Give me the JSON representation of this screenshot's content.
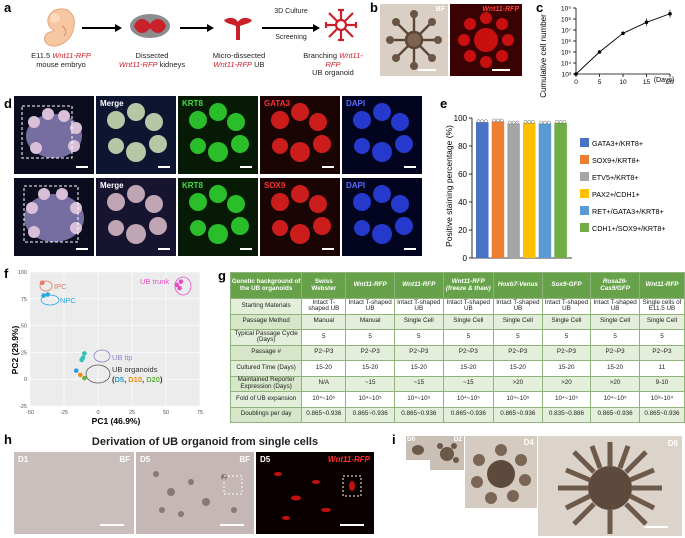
{
  "panel_letters": {
    "a": "a",
    "b": "b",
    "c": "c",
    "d": "d",
    "e": "e",
    "f": "f",
    "g": "g",
    "h": "h",
    "i": "i"
  },
  "panel_a": {
    "step1_line1": "E11.5",
    "step1_gene": "Wnt11-RFP",
    "step1_line2": "mouse embryo",
    "step2_line1": "Dissected",
    "step2_gene": "Wnt11-RFP",
    "step2_line2": "kidneys",
    "step3_line1": "Micro-dissected",
    "step3_gene": "Wnt11-RFP",
    "step3_line2": "UB",
    "arrow_label1": "3D Culture",
    "arrow_label2": "Screening",
    "step4_line1": "Branching",
    "step4_gene": "Wnt11-RFP",
    "step4_line2": "UB organoid"
  },
  "panel_b": {
    "bf_label": "BF",
    "rfp_label": "Wnt11-RFP"
  },
  "panel_c": {
    "chart_data": {
      "type": "line",
      "x": [
        0,
        5,
        10,
        15,
        20
      ],
      "y": [
        1000,
        100000,
        5000000,
        50000000,
        300000000
      ],
      "xlabel": "(Days)",
      "ylabel": "Cumulative cell number",
      "yscale": "log",
      "ylim": [
        1000,
        1000000000
      ],
      "xticks": [
        "0",
        "5",
        "10",
        "15",
        "20"
      ],
      "yticks": [
        "10³",
        "10⁴",
        "10⁵",
        "10⁶",
        "10⁷",
        "10⁸",
        "10⁹"
      ]
    }
  },
  "panel_d": {
    "row1": [
      "Merge",
      "KRT8",
      "GATA3",
      "DAPI"
    ],
    "row2": [
      "Merge",
      "KRT8",
      "SOX9",
      "DAPI"
    ]
  },
  "panel_e": {
    "chart_data": {
      "type": "bar",
      "categories": [
        "GATA3+/KRT8+",
        "SOX9+/KRT8+",
        "ETV5+/KRT8+",
        "PAX2+/CDH1+",
        "RET+/GATA3+/KRT8+",
        "CDH1+/SOX9+/KRT8+"
      ],
      "values": [
        97,
        97.5,
        96,
        96.5,
        96,
        96.5
      ],
      "ylabel": "Positive staining percentage (%)",
      "ylim": [
        0,
        100
      ],
      "yticks": [
        "0",
        "20",
        "40",
        "60",
        "80",
        "100"
      ],
      "colors": [
        "#4a73c4",
        "#ed7d31",
        "#a5a5a5",
        "#ffc000",
        "#5b9bd5",
        "#70ad47"
      ]
    }
  },
  "panel_f": {
    "chart_data": {
      "type": "scatter",
      "xlabel": "PC1 (46.9%)",
      "ylabel": "PC2 (29.9%)",
      "xlim": [
        -50,
        75
      ],
      "ylim": [
        -25,
        100
      ],
      "xticks": [
        "-50",
        "-25",
        "0",
        "25",
        "50",
        "75"
      ],
      "yticks": [
        "-25",
        "0",
        "25",
        "50",
        "75",
        "100"
      ],
      "groups": [
        {
          "name": "IPC",
          "color": "#e8775a",
          "points": [
            [
              -41,
              90
            ]
          ]
        },
        {
          "name": "NPC",
          "color": "#2aa8e0",
          "points": [
            [
              -40,
              78
            ],
            [
              -37,
              79
            ]
          ]
        },
        {
          "name": "UB trunk",
          "color": "#e84fc4",
          "points": [
            [
              58,
              88
            ],
            [
              61,
              91
            ],
            [
              60,
              85
            ]
          ]
        },
        {
          "name": "UB tip",
          "color": "#2ec3b5",
          "points": [
            [
              -11,
              20
            ],
            [
              -10,
              24
            ],
            [
              -12,
              18
            ]
          ]
        },
        {
          "name": "D5",
          "color": "#2b9ad6",
          "points": [
            [
              -16,
              8
            ]
          ]
        },
        {
          "name": "D10",
          "color": "#f08a1c",
          "points": [
            [
              -13,
              4
            ]
          ]
        },
        {
          "name": "D20",
          "color": "#62b53b",
          "points": [
            [
              -10,
              1
            ]
          ]
        }
      ],
      "labels": {
        "ipc": "IPC",
        "npc": "NPC",
        "ub_trunk": "UB trunk",
        "ub_tip": "UB tip",
        "ub_organoids": "UB organoids",
        "d5": "D5",
        "d10": "D10",
        "d20": "D20"
      }
    }
  },
  "panel_g": {
    "header": [
      "Genetic background of the UB organoids",
      "Swiss Webster",
      "Wnt11-RFP",
      "Wnt11-RFP",
      "Wnt11-RFP (freeze & thaw)",
      "Hoxb7-Venus",
      "Sox9-GFP",
      "Rosa26-Cas9/GFP",
      "Wnt11-RFP"
    ],
    "rows": [
      [
        "Starting Materials",
        "Intact T-shaped UB",
        "Intact T-shaped UB",
        "Intact T-shaped UB",
        "Intact T-shaped UB",
        "Intact T-shaped UB",
        "Intact T-shaped UB",
        "Intact T-shaped UB",
        "Single cells of E11.5 UB"
      ],
      [
        "Passage Method",
        "Manual",
        "Manual",
        "Single Cell",
        "Single Cell",
        "Single Cell",
        "Single Cell",
        "Single Cell",
        "Single Cell"
      ],
      [
        "Typical Passage Cycle (Days)",
        "5",
        "5",
        "5",
        "5",
        "5",
        "5",
        "5",
        "5"
      ],
      [
        "Passage #",
        "P2~P3",
        "P2~P3",
        "P2~P3",
        "P2~P3",
        "P2~P3",
        "P2~P3",
        "P2~P3",
        "P2~P3"
      ],
      [
        "Cultured Time (Days)",
        "15-20",
        "15-20",
        "15-20",
        "15-20",
        "15-20",
        "15-20",
        "15-20",
        "11"
      ],
      [
        "Maintained Reporter Expression (Days)",
        "N/A",
        "~15",
        "~15",
        "~15",
        ">20",
        ">20",
        ">20",
        "9-10"
      ],
      [
        "Fold of UB expansion",
        "10⁴~10⁵",
        "10⁴~10⁵",
        "10⁴~10⁵",
        "10⁴~10⁵",
        "10⁴~10⁵",
        "10⁴~10⁵",
        "10⁴~10⁵",
        "10³~10⁴"
      ],
      [
        "Doublings per day",
        "0.865~0.936",
        "0.865~0.936",
        "0.865~0.936",
        "0.865~0.936",
        "0.865~0.936",
        "0.835~0.886",
        "0.865~0.936",
        "0.865~0.936"
      ]
    ]
  },
  "panel_h": {
    "title": "Derivation of UB organoid from single cells",
    "img1_day": "D1",
    "img1_mode": "BF",
    "img2_day": "D5",
    "img2_mode": "BF",
    "img3_day": "D5",
    "img3_mode": "Wnt11-RFP"
  },
  "panel_i": {
    "days": [
      "D0",
      "D2",
      "D4",
      "D6"
    ]
  }
}
